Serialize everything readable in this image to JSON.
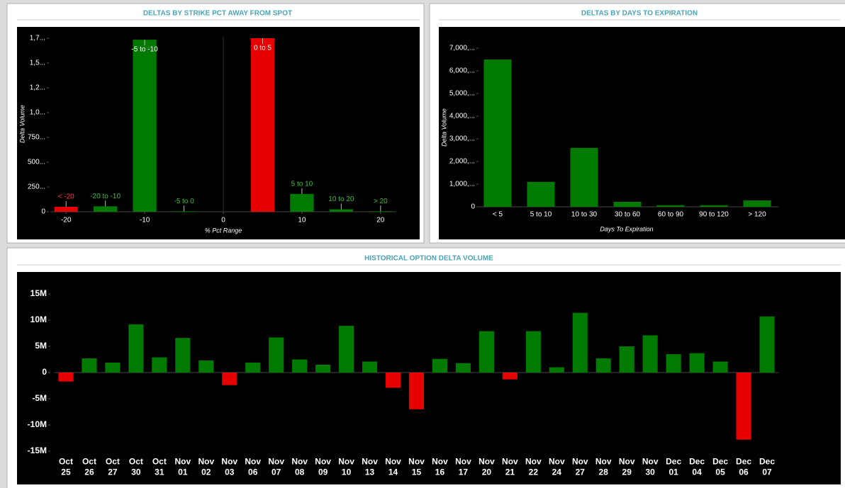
{
  "chart_data": [
    {
      "type": "bar",
      "title": "DELTAS BY STRIKE PCT AWAY FROM SPOT",
      "x_label": "% Pct Range",
      "y_label": "Delta Volume",
      "x": [
        -20,
        -15,
        -10,
        -5,
        5,
        10,
        15,
        20
      ],
      "bar_labels": [
        "< -20",
        "-20 to -10",
        "-5 to -10",
        "-5 to 0",
        "0 to 5",
        "5 to 10",
        "10 to 20",
        "> 20"
      ],
      "values": [
        50,
        55,
        1735,
        5,
        1750,
        180,
        25,
        5
      ],
      "colors": [
        "#e60000",
        "#007a00",
        "#007a00",
        "#007a00",
        "#e60000",
        "#007a00",
        "#007a00",
        "#007a00"
      ],
      "xlim": [
        -22,
        22
      ],
      "xticks": [
        -20,
        -10,
        0,
        10,
        20
      ],
      "ylim": [
        0,
        1800
      ],
      "yticks": [
        0,
        {
          "value": 250,
          "label": "250..."
        },
        {
          "value": 500,
          "label": "500..."
        },
        {
          "value": 750,
          "label": "750..."
        },
        {
          "value": 1000,
          "label": "1,0..."
        },
        {
          "value": 1250,
          "label": "1,2..."
        },
        {
          "value": 1500,
          "label": "1,5..."
        },
        {
          "value": 1750,
          "label": "1,7..."
        }
      ]
    },
    {
      "type": "bar",
      "title": "DELTAS BY DAYS TO EXPIRATION",
      "x_label": "Days To Expiration",
      "y_label": "Delta Volume",
      "categories": [
        "< 5",
        "5 to 10",
        "10 to 30",
        "30 to 60",
        "60 to 90",
        "90 to 120",
        "> 120"
      ],
      "values": [
        6500,
        1100,
        2600,
        220,
        70,
        70,
        280
      ],
      "color": "#007a00",
      "ylim": [
        0,
        7500
      ],
      "yticks": [
        0,
        {
          "value": 1000,
          "label": "1,000,..."
        },
        {
          "value": 2000,
          "label": "2,000,..."
        },
        {
          "value": 3000,
          "label": "3,000,..."
        },
        {
          "value": 4000,
          "label": "4,000,..."
        },
        {
          "value": 5000,
          "label": "5,000,..."
        },
        {
          "value": 6000,
          "label": "6,000,..."
        },
        {
          "value": 7000,
          "label": "7,000,..."
        }
      ]
    },
    {
      "type": "bar",
      "title": "HISTORICAL OPTION DELTA VOLUME",
      "categories": [
        "Oct 25",
        "Oct 26",
        "Oct 27",
        "Oct 30",
        "Oct 31",
        "Nov 01",
        "Nov 02",
        "Nov 03",
        "Nov 06",
        "Nov 07",
        "Nov 08",
        "Nov 09",
        "Nov 10",
        "Nov 13",
        "Nov 14",
        "Nov 15",
        "Nov 16",
        "Nov 17",
        "Nov 20",
        "Nov 21",
        "Nov 22",
        "Nov 24",
        "Nov 27",
        "Nov 28",
        "Nov 29",
        "Nov 30",
        "Dec 01",
        "Dec 04",
        "Dec 05",
        "Dec 06",
        "Dec 07"
      ],
      "values": [
        -1700000,
        2700000,
        1900000,
        9200000,
        2900000,
        6600000,
        2300000,
        -2400000,
        1900000,
        6700000,
        2500000,
        1500000,
        8900000,
        2100000,
        -2900000,
        -7000000,
        2600000,
        1800000,
        7900000,
        -1300000,
        7900000,
        1000000,
        11400000,
        2700000,
        5000000,
        7100000,
        3500000,
        3700000,
        2100000,
        -12800000,
        10700000
      ],
      "positive_color": "#007a00",
      "negative_color": "#e60000",
      "ylim": [
        -16000000,
        17000000
      ],
      "yticks": [
        {
          "value": -15000000,
          "label": "-15M"
        },
        {
          "value": -10000000,
          "label": "-10M"
        },
        {
          "value": -5000000,
          "label": "-5M"
        },
        0,
        {
          "value": 5000000,
          "label": "5M"
        },
        {
          "value": 10000000,
          "label": "10M"
        },
        {
          "value": 15000000,
          "label": "15M"
        }
      ]
    }
  ]
}
